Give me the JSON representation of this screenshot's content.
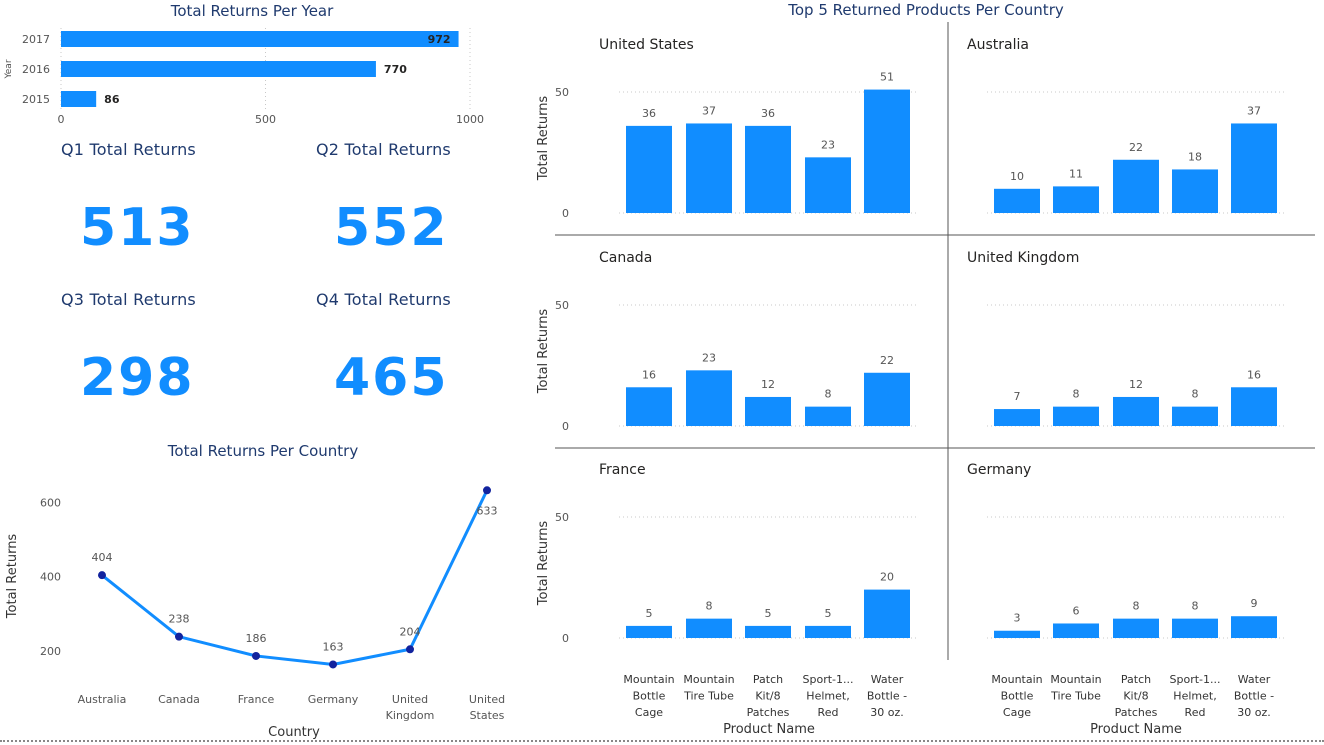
{
  "colors": {
    "bar": "#118dff",
    "title": "#1f3a6e",
    "axis_text": "#555555",
    "grid": "#c8c8c8",
    "divider": "#555555",
    "point": "#12239e"
  },
  "kpis": [
    {
      "label": "Q1 Total Returns",
      "value": "513"
    },
    {
      "label": "Q2 Total Returns",
      "value": "552"
    },
    {
      "label": "Q3 Total Returns",
      "value": "298"
    },
    {
      "label": "Q4 Total Returns",
      "value": "465"
    }
  ],
  "chart_data": [
    {
      "id": "year",
      "type": "bar",
      "orientation": "horizontal",
      "title": "Total Returns Per Year",
      "ylabel": "Year",
      "xlabel": "",
      "categories": [
        "2017",
        "2016",
        "2015"
      ],
      "values": [
        972,
        770,
        86
      ],
      "xlim": [
        0,
        1000
      ],
      "xticks": [
        0,
        500,
        1000
      ],
      "grid": true
    },
    {
      "id": "country",
      "type": "line",
      "title": "Total Returns Per Country",
      "xlabel": "Country",
      "ylabel": "Total Returns",
      "categories": [
        "Australia",
        "Canada",
        "France",
        "Germany",
        "United Kingdom",
        "United States"
      ],
      "values": [
        404,
        238,
        186,
        163,
        204,
        633
      ],
      "ylim": [
        140,
        650
      ],
      "yticks": [
        200,
        400,
        600
      ],
      "grid": false
    },
    {
      "id": "products",
      "type": "bar",
      "title": "Top 5 Returned Products Per Country",
      "xlabel": "Product Name",
      "ylabel": "Total Returns",
      "categories": [
        "Mountain Bottle Cage",
        "Mountain Tire Tube",
        "Patch Kit/8 Patches",
        "Sport-1... Helmet, Red",
        "Water Bottle - 30 oz."
      ],
      "category_lines": [
        [
          "Mountain",
          "Bottle",
          "Cage"
        ],
        [
          "Mountain",
          "Tire Tube"
        ],
        [
          "Patch",
          "Kit/8",
          "Patches"
        ],
        [
          "Sport-1...",
          "Helmet,",
          "Red"
        ],
        [
          "Water",
          "Bottle -",
          "30 oz."
        ]
      ],
      "ylim": [
        0,
        60
      ],
      "yticks": [
        0,
        50
      ],
      "grid": true,
      "panels": [
        {
          "name": "United States",
          "values": [
            36,
            37,
            36,
            23,
            51
          ]
        },
        {
          "name": "Australia",
          "values": [
            10,
            11,
            22,
            18,
            37
          ]
        },
        {
          "name": "Canada",
          "values": [
            16,
            23,
            12,
            8,
            22
          ]
        },
        {
          "name": "United Kingdom",
          "values": [
            7,
            8,
            12,
            8,
            16
          ]
        },
        {
          "name": "France",
          "values": [
            5,
            8,
            5,
            5,
            20
          ]
        },
        {
          "name": "Germany",
          "values": [
            3,
            6,
            8,
            8,
            9
          ]
        }
      ]
    }
  ]
}
